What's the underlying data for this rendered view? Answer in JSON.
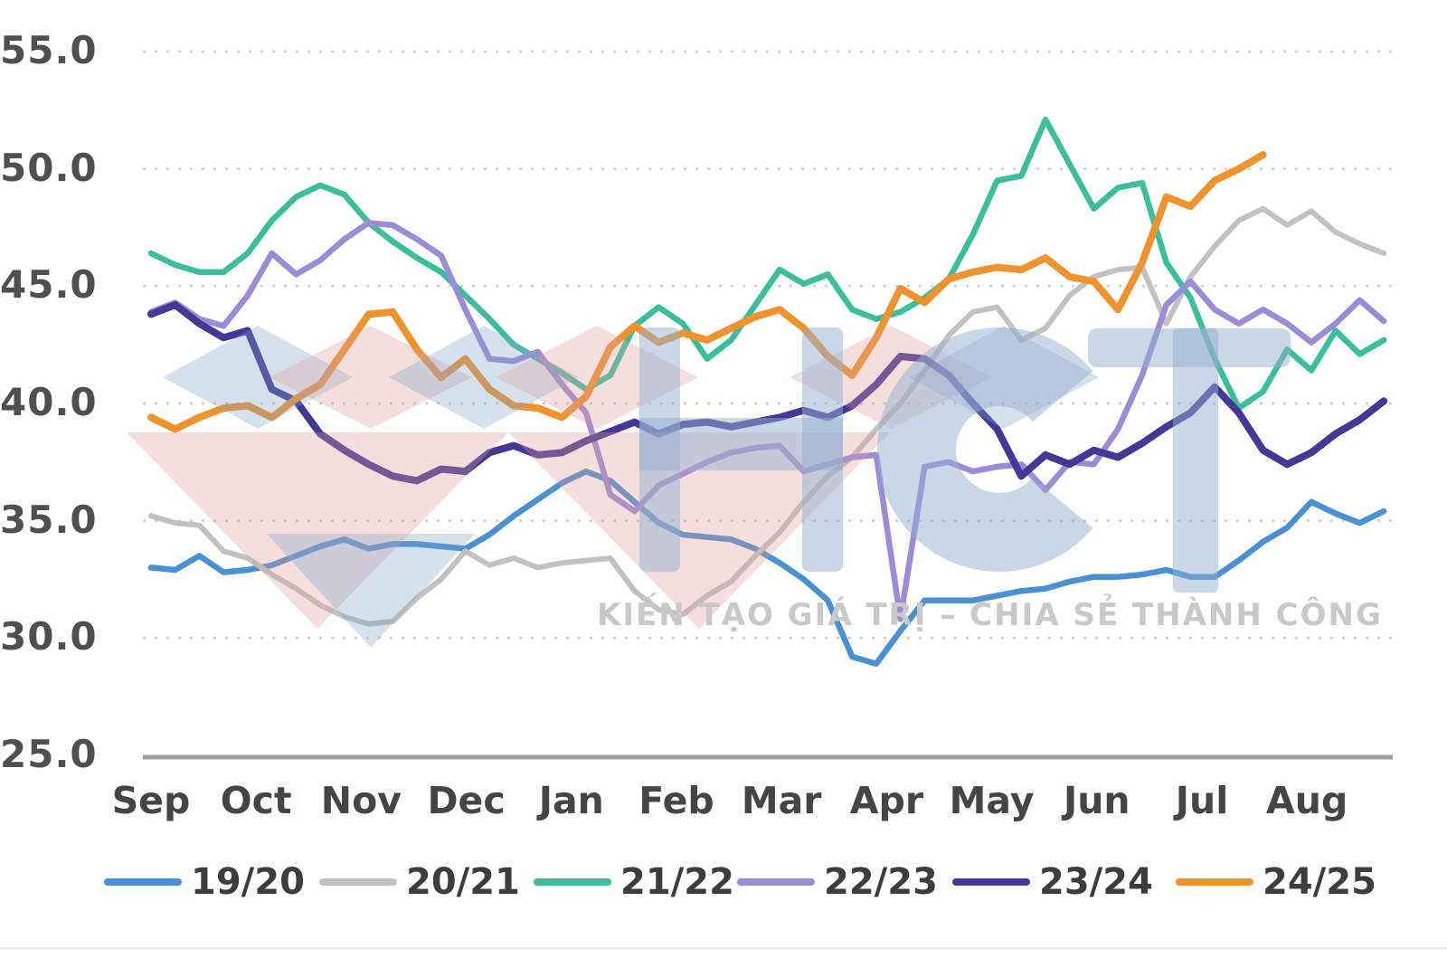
{
  "chart_data": {
    "type": "line",
    "title": "",
    "x_axis": {
      "months": [
        "Sep",
        "Oct",
        "Nov",
        "Dec",
        "Jan",
        "Feb",
        "Mar",
        "Apr",
        "May",
        "Jun",
        "Jul",
        "Aug"
      ],
      "points_per_series": 52,
      "note_unit": "weekly points across marketing year Sep-Aug"
    },
    "y_axis": {
      "tick_labels": [
        "55.0",
        "50.0",
        "45.0",
        "40.0",
        "35.0",
        "30.0",
        "25.0"
      ],
      "tick_values": [
        55,
        50,
        45,
        40,
        35,
        30,
        25
      ],
      "ylim": [
        25,
        55
      ],
      "grid": "dotted"
    },
    "legend_position": "bottom",
    "series": [
      {
        "name": "19/20",
        "color": "#4a90d5",
        "width": 6.5,
        "values": [
          33.0,
          32.9,
          33.5,
          32.8,
          32.9,
          33.1,
          33.5,
          33.9,
          34.2,
          33.8,
          34.0,
          34.0,
          33.9,
          33.8,
          34.4,
          35.2,
          35.9,
          36.6,
          37.1,
          36.7,
          35.8,
          34.9,
          34.4,
          34.3,
          34.2,
          33.8,
          33.2,
          32.5,
          31.6,
          29.2,
          28.9,
          30.3,
          31.6,
          31.6,
          31.6,
          31.8,
          32.0,
          32.1,
          32.4,
          32.6,
          32.6,
          32.7,
          32.9,
          32.6,
          32.6,
          33.3,
          34.1,
          34.7,
          35.8,
          35.3,
          34.9,
          35.4
        ]
      },
      {
        "name": "20/21",
        "color": "#c2c2c4",
        "width": 6,
        "values": [
          35.2,
          34.9,
          34.8,
          33.7,
          33.4,
          32.7,
          32.1,
          31.4,
          30.9,
          30.6,
          30.7,
          31.7,
          32.5,
          33.7,
          33.1,
          33.4,
          33.0,
          33.2,
          33.3,
          33.4,
          32.0,
          31.2,
          31.0,
          31.8,
          32.4,
          33.5,
          34.5,
          35.8,
          36.9,
          37.7,
          38.9,
          40.0,
          41.4,
          42.9,
          43.9,
          44.1,
          42.7,
          43.2,
          44.6,
          45.4,
          45.7,
          45.8,
          43.4,
          45.4,
          46.7,
          47.8,
          48.3,
          47.6,
          48.2,
          47.3,
          46.8,
          46.4
        ]
      },
      {
        "name": "21/22",
        "color": "#3abf9d",
        "width": 6.5,
        "values": [
          46.4,
          45.9,
          45.6,
          45.6,
          46.4,
          47.8,
          48.8,
          49.3,
          48.9,
          47.7,
          46.9,
          46.2,
          45.6,
          44.6,
          43.6,
          42.5,
          41.9,
          41.3,
          40.6,
          41.2,
          43.3,
          44.1,
          43.4,
          41.9,
          42.7,
          44.2,
          45.7,
          45.1,
          45.5,
          44.0,
          43.6,
          43.9,
          44.5,
          45.3,
          47.2,
          49.5,
          49.7,
          52.1,
          50.2,
          48.3,
          49.2,
          49.4,
          46.0,
          44.5,
          41.9,
          39.8,
          40.5,
          42.3,
          41.4,
          43.1,
          42.1,
          42.7
        ]
      },
      {
        "name": "22/23",
        "color": "#9c8bd8",
        "width": 6.5,
        "values": [
          43.9,
          44.3,
          43.6,
          43.3,
          44.6,
          46.4,
          45.5,
          46.1,
          47.0,
          47.7,
          47.6,
          47.0,
          46.3,
          44.0,
          41.9,
          41.8,
          42.2,
          40.8,
          39.6,
          36.1,
          35.4,
          36.5,
          37.0,
          37.5,
          37.9,
          38.1,
          38.2,
          37.1,
          37.4,
          37.7,
          37.8,
          30.8,
          37.3,
          37.5,
          37.1,
          37.3,
          37.4,
          36.3,
          37.5,
          37.4,
          38.9,
          41.2,
          44.2,
          45.2,
          44.0,
          43.4,
          44.0,
          43.4,
          42.6,
          43.4,
          44.4,
          43.5
        ]
      },
      {
        "name": "23/24",
        "color": "#453795",
        "width": 8,
        "values": [
          43.8,
          44.2,
          43.4,
          42.8,
          43.1,
          40.6,
          40.1,
          38.7,
          38.0,
          37.4,
          36.9,
          36.7,
          37.2,
          37.1,
          37.9,
          38.2,
          37.8,
          37.9,
          38.4,
          38.8,
          39.2,
          38.7,
          39.1,
          39.2,
          39.0,
          39.2,
          39.4,
          39.7,
          39.4,
          39.9,
          40.8,
          42.0,
          41.9,
          41.2,
          40.0,
          38.9,
          36.9,
          37.8,
          37.4,
          38.0,
          37.7,
          38.3,
          39.0,
          39.6,
          40.7,
          39.6,
          38.0,
          37.4,
          37.9,
          38.7,
          39.3,
          40.1
        ]
      },
      {
        "name": "24/25",
        "color": "#f0932c",
        "width": 8,
        "values": [
          39.4,
          38.9,
          39.4,
          39.8,
          39.9,
          39.4,
          40.2,
          40.8,
          42.3,
          43.8,
          43.9,
          42.3,
          41.1,
          41.9,
          40.6,
          39.9,
          39.8,
          39.4,
          40.3,
          42.4,
          43.3,
          42.6,
          43.0,
          42.7,
          43.2,
          43.7,
          44.0,
          43.2,
          42.0,
          41.2,
          42.8,
          44.9,
          44.3,
          45.3,
          45.6,
          45.8,
          45.7,
          46.2,
          45.4,
          45.2,
          44.0,
          46.0,
          48.8,
          48.4,
          49.5,
          50.0,
          50.6
        ]
      }
    ]
  },
  "axis_colors": {
    "grid": "#cfcfcf",
    "axis_line": "#9e9e9e",
    "tick_text": "#4f4f4f",
    "month_text": "#454545"
  },
  "watermark": {
    "letters": "HCT",
    "slogan": "KIẾN TẠO GIÁ TRỊ – CHIA SẺ THÀNH CÔNG",
    "slogan_color": "#c9c9c9",
    "letter_color": "rgba(148,175,207,0.50)",
    "diamond_pink": "rgba(223,157,155,0.33)",
    "diamond_blue": "rgba(130,165,203,0.33)"
  },
  "legend": {
    "items": [
      "19/20",
      "20/21",
      "21/22",
      "22/23",
      "23/24",
      "24/25"
    ]
  }
}
